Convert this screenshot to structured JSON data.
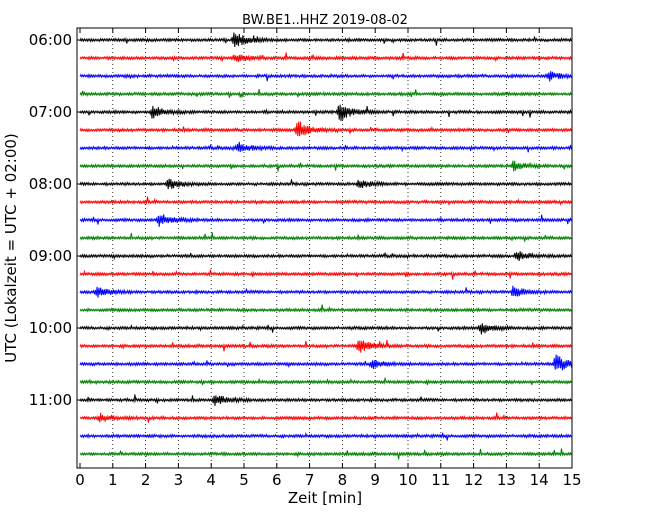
{
  "chart_data": {
    "type": "line",
    "title": "BW.BE1..HHZ 2019-08-02",
    "xlabel": "Zeit  [min]",
    "ylabel": "UTC (Lokalzeit = UTC + 02:00)",
    "xlim": [
      0,
      15
    ],
    "x_ticks": [
      "0",
      "1",
      "2",
      "3",
      "4",
      "5",
      "6",
      "7",
      "8",
      "9",
      "10",
      "11",
      "12",
      "13",
      "14",
      "15"
    ],
    "y_tick_labels": [
      "06:00",
      "07:00",
      "08:00",
      "09:00",
      "10:00",
      "11:00"
    ],
    "trace_start_times": [
      "06:00",
      "06:15",
      "06:30",
      "06:45",
      "07:00",
      "07:15",
      "07:30",
      "07:45",
      "08:00",
      "08:15",
      "08:30",
      "08:45",
      "09:00",
      "09:15",
      "09:30",
      "09:45",
      "10:00",
      "10:15",
      "10:30",
      "10:45",
      "11:00",
      "11:15",
      "11:30",
      "11:45"
    ],
    "trace_colors": [
      "#000000",
      "#ff0000",
      "#0000ff",
      "#008000"
    ],
    "grid": "vertical dotted",
    "events": [
      {
        "trace": 0,
        "minute": 4.7,
        "amp": 0.9
      },
      {
        "trace": 1,
        "minute": 4.7,
        "amp": 0.5
      },
      {
        "trace": 2,
        "minute": 14.3,
        "amp": 0.5
      },
      {
        "trace": 4,
        "minute": 7.9,
        "amp": 1.0
      },
      {
        "trace": 4,
        "minute": 2.2,
        "amp": 0.7
      },
      {
        "trace": 5,
        "minute": 6.6,
        "amp": 1.1
      },
      {
        "trace": 6,
        "minute": 4.8,
        "amp": 0.6
      },
      {
        "trace": 7,
        "minute": 13.2,
        "amp": 0.5
      },
      {
        "trace": 8,
        "minute": 2.7,
        "amp": 0.6
      },
      {
        "trace": 8,
        "minute": 8.5,
        "amp": 0.5
      },
      {
        "trace": 10,
        "minute": 2.4,
        "amp": 0.8
      },
      {
        "trace": 12,
        "minute": 13.3,
        "amp": 0.5
      },
      {
        "trace": 14,
        "minute": 0.5,
        "amp": 0.6
      },
      {
        "trace": 14,
        "minute": 13.2,
        "amp": 0.6
      },
      {
        "trace": 16,
        "minute": 12.2,
        "amp": 0.7
      },
      {
        "trace": 17,
        "minute": 8.5,
        "amp": 0.8
      },
      {
        "trace": 18,
        "minute": 14.5,
        "amp": 1.0
      },
      {
        "trace": 18,
        "minute": 8.9,
        "amp": 0.5
      },
      {
        "trace": 20,
        "minute": 4.1,
        "amp": 0.6
      },
      {
        "trace": 21,
        "minute": 0.6,
        "amp": 0.5
      }
    ]
  }
}
